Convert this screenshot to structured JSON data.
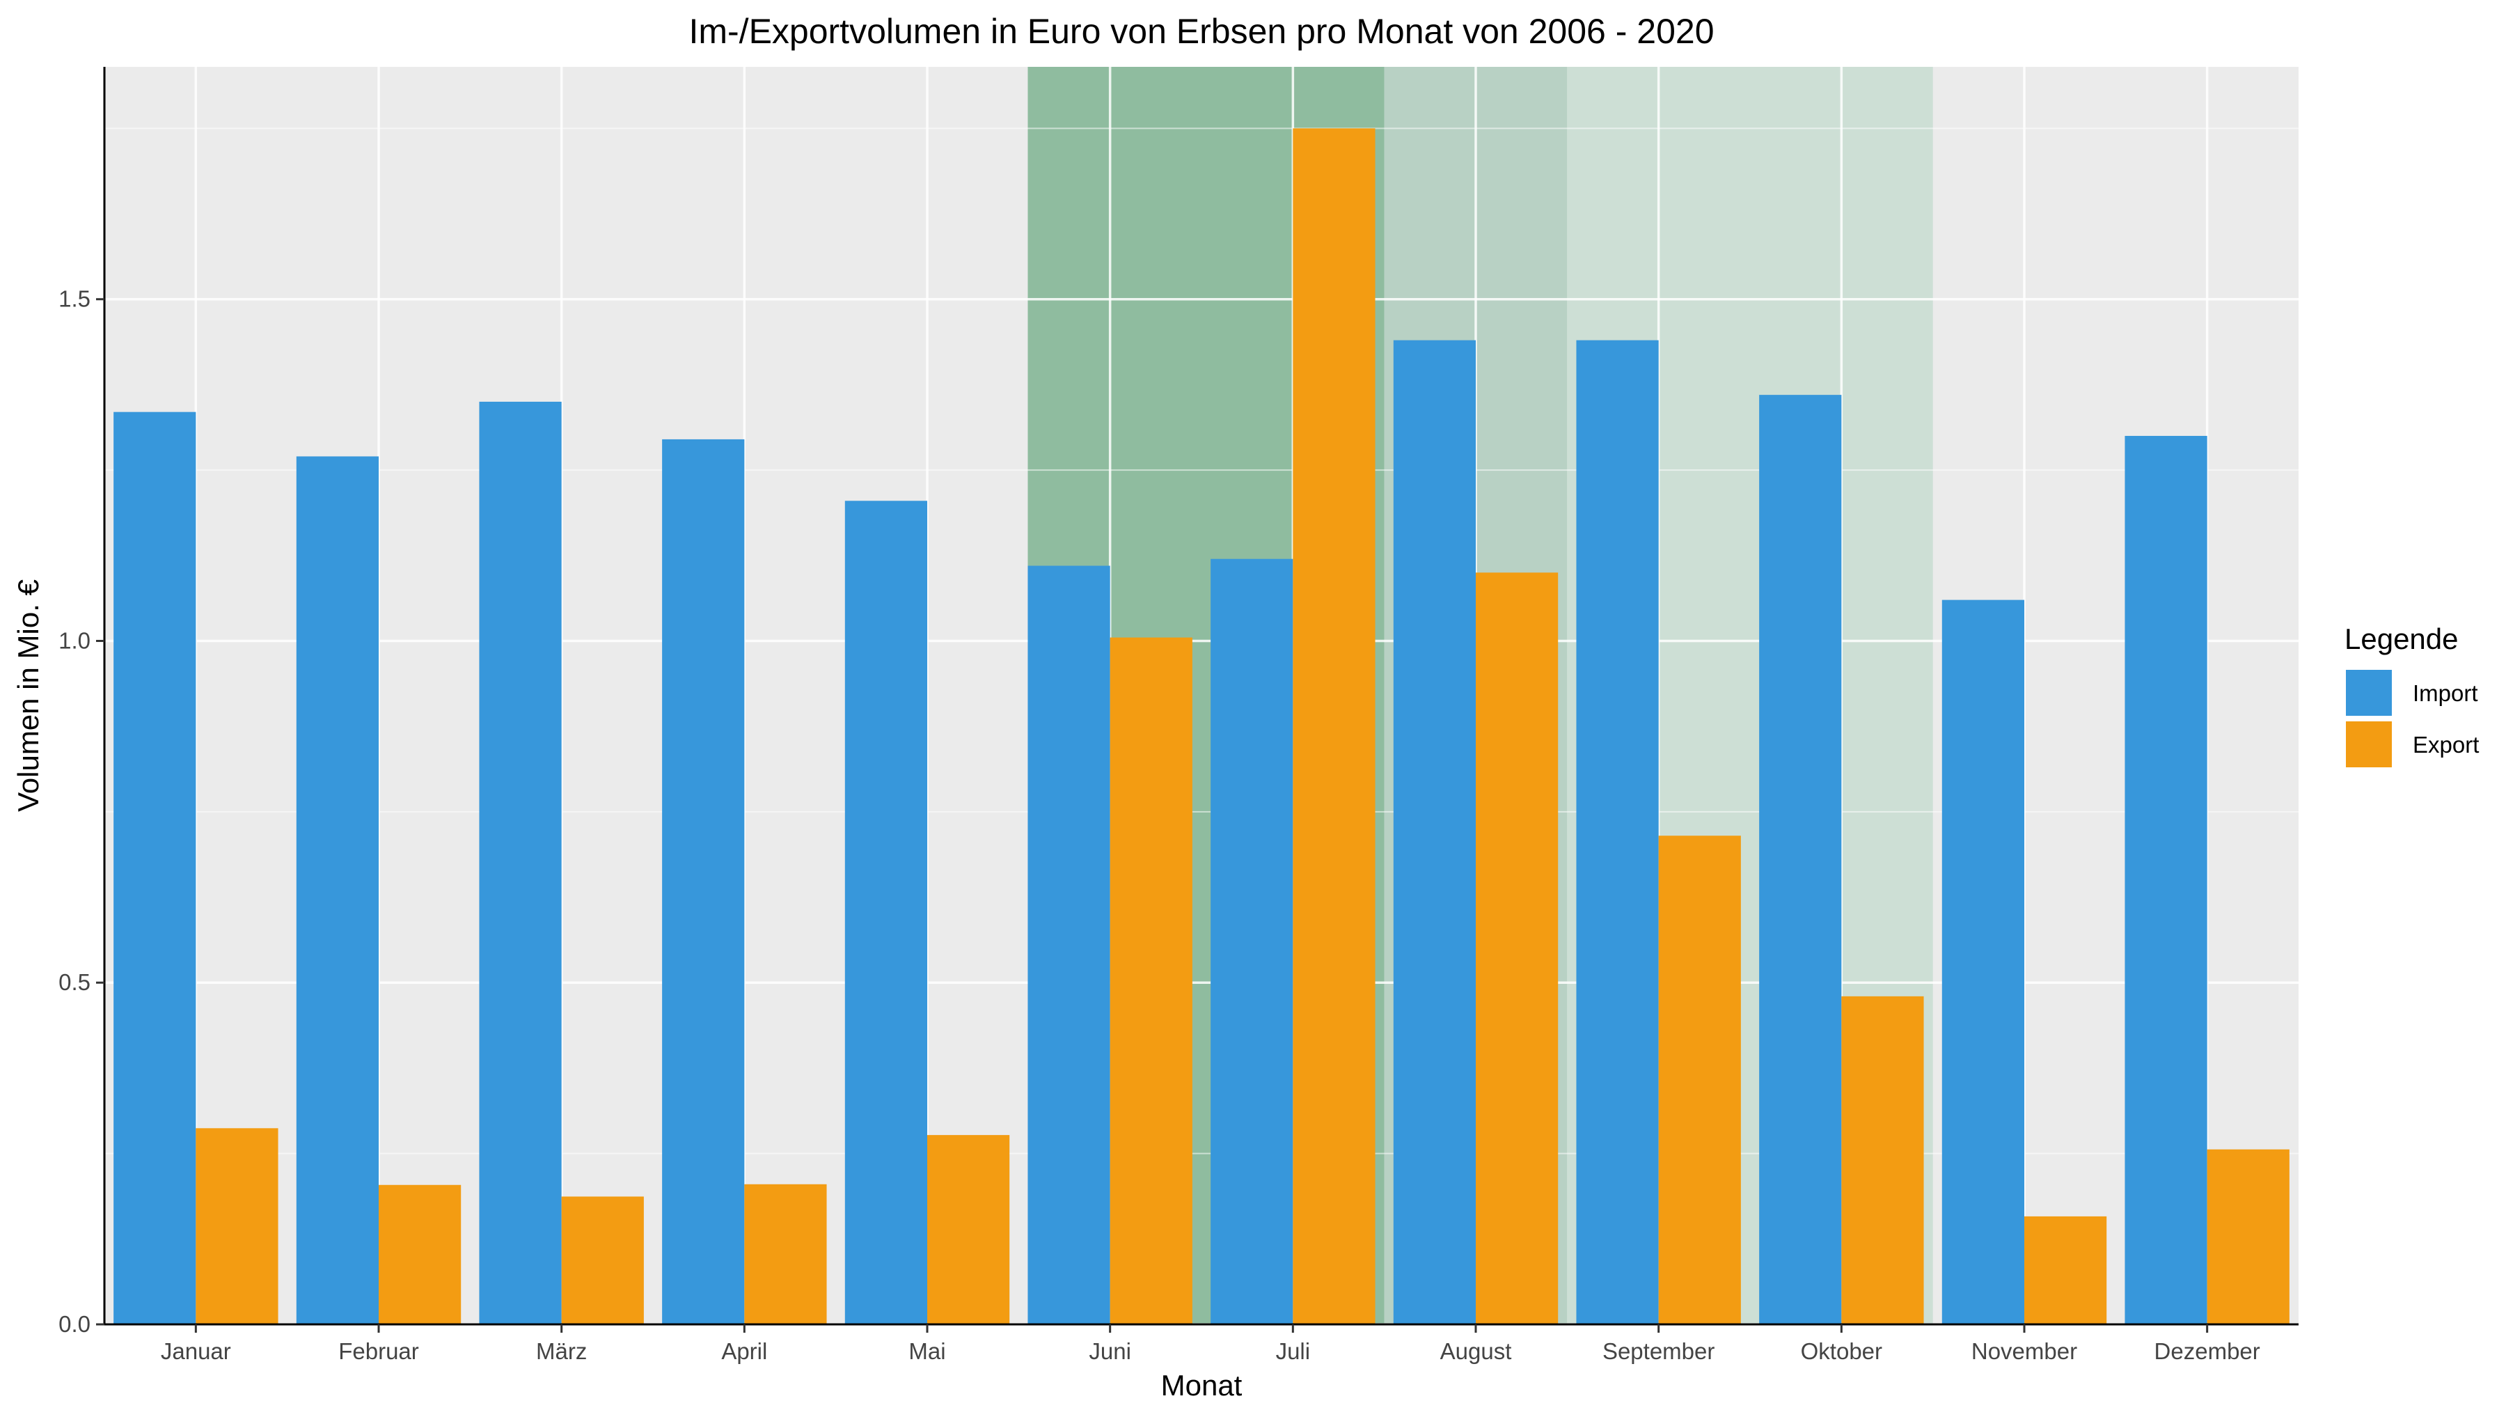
{
  "chart_data": {
    "type": "bar",
    "title": "Im-/Exportvolumen in Euro von Erbsen pro Monat von 2006 - 2020",
    "xlabel": "Monat",
    "ylabel": "Volumen in Mio. €",
    "categories": [
      "Januar",
      "Februar",
      "März",
      "April",
      "Mai",
      "Juni",
      "Juli",
      "August",
      "September",
      "Oktober",
      "November",
      "Dezember"
    ],
    "series": [
      {
        "name": "Import",
        "color": "#3797db",
        "values": [
          1.335,
          1.27,
          1.35,
          1.295,
          1.205,
          1.11,
          1.12,
          1.44,
          1.44,
          1.36,
          1.06,
          1.3
        ]
      },
      {
        "name": "Export",
        "color": "#f39c12",
        "values": [
          0.287,
          0.204,
          0.187,
          0.205,
          0.277,
          1.005,
          1.75,
          1.1,
          0.715,
          0.48,
          0.158,
          0.256
        ]
      }
    ],
    "ylim": [
      0,
      1.84
    ],
    "yticks": [
      0.0,
      0.5,
      1.0,
      1.5
    ],
    "ytick_labels": [
      "0.0",
      "0.5",
      "1.0",
      "1.5"
    ],
    "grid": true,
    "legend": {
      "title": "Legende",
      "position": "right"
    },
    "highlight_bands": [
      {
        "from": "Juni",
        "to": "Juli",
        "color": "#8fbc9f",
        "opacity": 1.0
      },
      {
        "from": "August",
        "to": "August",
        "color": "#b8d1c4",
        "opacity": 1.0
      },
      {
        "from": "September",
        "to": "Oktober",
        "color": "#cddfd5",
        "opacity": 1.0
      }
    ],
    "colors": {
      "panel_background": "#ebebeb",
      "grid": "#ffffff",
      "axis": "#000000"
    }
  }
}
